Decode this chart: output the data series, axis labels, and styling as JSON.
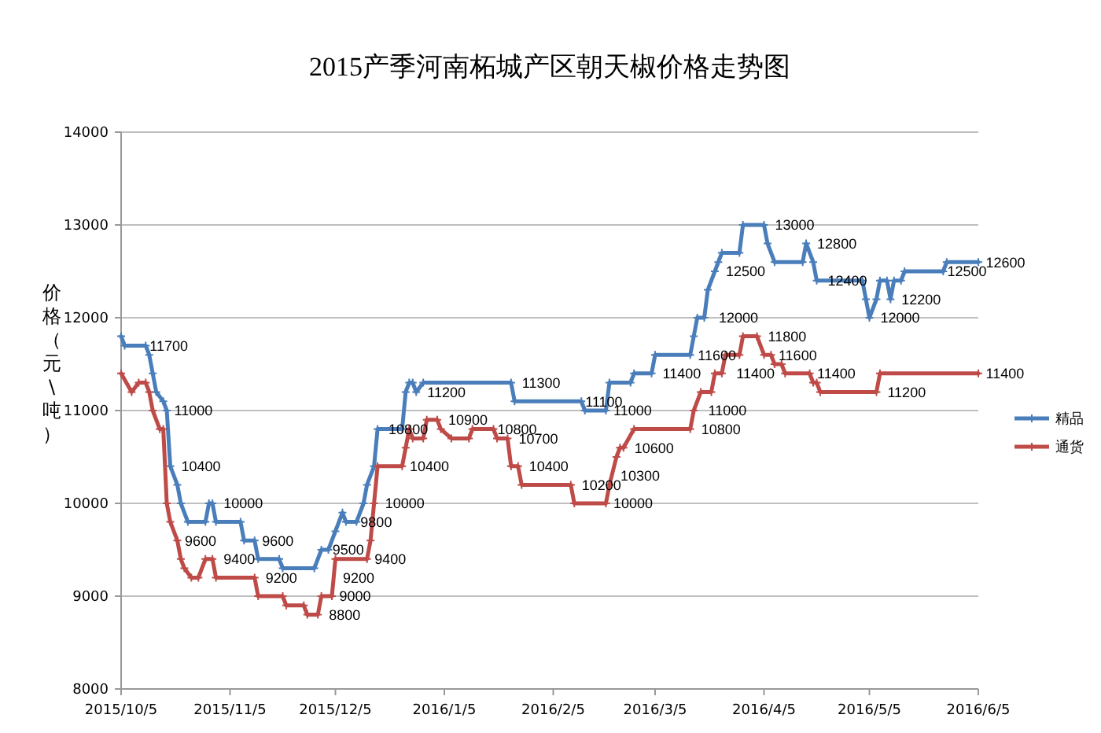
{
  "chart_data": {
    "type": "line",
    "title": "2015产季河南柘城产区朝天椒价格走势图",
    "ylabel": "价格（元\\吨）",
    "xlim": [
      "2015-10-05",
      "2016-06-05"
    ],
    "xticks": [
      {
        "value": "2015-10-05",
        "label": "2015/10/5"
      },
      {
        "value": "2015-11-05",
        "label": "2015/11/5"
      },
      {
        "value": "2015-12-05",
        "label": "2015/12/5"
      },
      {
        "value": "2016-01-05",
        "label": "2016/1/5"
      },
      {
        "value": "2016-02-05",
        "label": "2016/2/5"
      },
      {
        "value": "2016-03-05",
        "label": "2016/3/5"
      },
      {
        "value": "2016-04-05",
        "label": "2016/4/5"
      },
      {
        "value": "2016-05-05",
        "label": "2016/5/5"
      },
      {
        "value": "2016-06-05",
        "label": "2016/6/5"
      }
    ],
    "ylim": [
      8000,
      14000
    ],
    "yticks": [
      8000,
      9000,
      10000,
      11000,
      12000,
      13000,
      14000
    ],
    "grid": "y",
    "legend": "right",
    "marker": "cross",
    "line_style": "solid",
    "series": [
      {
        "name": "精品",
        "color": "#4a7ebb",
        "x": [
          "2015-10-05",
          "2015-10-06",
          "2015-10-12",
          "2015-10-13",
          "2015-10-14",
          "2015-10-15",
          "2015-10-17",
          "2015-10-18",
          "2015-10-19",
          "2015-10-21",
          "2015-10-22",
          "2015-10-24",
          "2015-10-29",
          "2015-10-30",
          "2015-10-31",
          "2015-11-01",
          "2015-11-08",
          "2015-11-09",
          "2015-11-12",
          "2015-11-13",
          "2015-11-19",
          "2015-11-20",
          "2015-11-29",
          "2015-12-01",
          "2015-12-03",
          "2015-12-05",
          "2015-12-07",
          "2015-12-08",
          "2015-12-11",
          "2015-12-13",
          "2015-12-14",
          "2015-12-16",
          "2015-12-17",
          "2015-12-24",
          "2015-12-25",
          "2015-12-26",
          "2015-12-27",
          "2015-12-28",
          "2015-12-30",
          "2016-01-24",
          "2016-01-25",
          "2016-02-13",
          "2016-02-14",
          "2016-02-20",
          "2016-02-21",
          "2016-02-27",
          "2016-02-28",
          "2016-03-04",
          "2016-03-05",
          "2016-03-15",
          "2016-03-16",
          "2016-03-17",
          "2016-03-19",
          "2016-03-20",
          "2016-03-22",
          "2016-03-23",
          "2016-03-24",
          "2016-03-29",
          "2016-03-30",
          "2016-04-05",
          "2016-04-06",
          "2016-04-08",
          "2016-04-16",
          "2016-04-17",
          "2016-04-19",
          "2016-04-20",
          "2016-05-03",
          "2016-05-04",
          "2016-05-05",
          "2016-05-07",
          "2016-05-08",
          "2016-05-10",
          "2016-05-11",
          "2016-05-12",
          "2016-05-14",
          "2016-05-15",
          "2016-05-26",
          "2016-05-27",
          "2016-06-05"
        ],
        "values": [
          11800,
          11700,
          11700,
          11600,
          11400,
          11200,
          11100,
          11000,
          10400,
          10200,
          10000,
          9800,
          9800,
          10000,
          10000,
          9800,
          9800,
          9600,
          9600,
          9400,
          9400,
          9300,
          9300,
          9500,
          9500,
          9700,
          9900,
          9800,
          9800,
          10000,
          10200,
          10400,
          10800,
          10800,
          11200,
          11300,
          11300,
          11200,
          11300,
          11300,
          11100,
          11100,
          11000,
          11000,
          11300,
          11300,
          11400,
          11400,
          11600,
          11600,
          11800,
          12000,
          12000,
          12300,
          12500,
          12600,
          12700,
          12700,
          13000,
          13000,
          12800,
          12600,
          12600,
          12800,
          12600,
          12400,
          12400,
          12200,
          12000,
          12200,
          12400,
          12400,
          12200,
          12400,
          12400,
          12500,
          12500,
          12600,
          12600
        ]
      },
      {
        "name": "通货",
        "color": "#be4b48",
        "x": [
          "2015-10-05",
          "2015-10-08",
          "2015-10-10",
          "2015-10-12",
          "2015-10-13",
          "2015-10-14",
          "2015-10-16",
          "2015-10-17",
          "2015-10-18",
          "2015-10-19",
          "2015-10-21",
          "2015-10-22",
          "2015-10-23",
          "2015-10-25",
          "2015-10-27",
          "2015-10-29",
          "2015-10-31",
          "2015-11-01",
          "2015-11-12",
          "2015-11-13",
          "2015-11-20",
          "2015-11-21",
          "2015-11-26",
          "2015-11-27",
          "2015-11-30",
          "2015-12-01",
          "2015-12-04",
          "2015-12-05",
          "2015-12-14",
          "2015-12-15",
          "2015-12-16",
          "2015-12-17",
          "2015-12-24",
          "2015-12-25",
          "2015-12-26",
          "2015-12-27",
          "2015-12-30",
          "2015-12-31",
          "2016-01-03",
          "2016-01-04",
          "2016-01-07",
          "2016-01-12",
          "2016-01-13",
          "2016-01-19",
          "2016-01-20",
          "2016-01-23",
          "2016-01-24",
          "2016-01-26",
          "2016-01-27",
          "2016-02-10",
          "2016-02-11",
          "2016-02-20",
          "2016-02-21",
          "2016-02-23",
          "2016-02-24",
          "2016-02-25",
          "2016-02-28",
          "2016-03-15",
          "2016-03-16",
          "2016-03-18",
          "2016-03-21",
          "2016-03-22",
          "2016-03-24",
          "2016-03-25",
          "2016-03-29",
          "2016-03-30",
          "2016-04-03",
          "2016-04-05",
          "2016-04-07",
          "2016-04-08",
          "2016-04-10",
          "2016-04-11",
          "2016-04-18",
          "2016-04-19",
          "2016-04-20",
          "2016-04-21",
          "2016-05-07",
          "2016-05-08",
          "2016-06-05"
        ],
        "values": [
          11400,
          11200,
          11300,
          11300,
          11200,
          11000,
          10800,
          10800,
          10000,
          9800,
          9600,
          9400,
          9300,
          9200,
          9200,
          9400,
          9400,
          9200,
          9200,
          9000,
          9000,
          8900,
          8900,
          8800,
          8800,
          9000,
          9000,
          9400,
          9400,
          9600,
          10000,
          10400,
          10400,
          10600,
          10800,
          10700,
          10700,
          10900,
          10900,
          10800,
          10700,
          10700,
          10800,
          10800,
          10700,
          10700,
          10400,
          10400,
          10200,
          10200,
          10000,
          10000,
          10200,
          10500,
          10600,
          10600,
          10800,
          10800,
          11000,
          11200,
          11200,
          11400,
          11400,
          11600,
          11600,
          11800,
          11800,
          11600,
          11600,
          11500,
          11500,
          11400,
          11400,
          11300,
          11300,
          11200,
          11200,
          11400,
          11400
        ]
      }
    ],
    "annotations": [
      {
        "text": "11700",
        "x": "2015-10-10",
        "y": 11700
      },
      {
        "text": "11000",
        "x": "2015-10-17",
        "y": 11000
      },
      {
        "text": "10400",
        "x": "2015-10-19",
        "y": 10400
      },
      {
        "text": "10000",
        "x": "2015-10-31",
        "y": 10000
      },
      {
        "text": "9600",
        "x": "2015-10-20",
        "y": 9600
      },
      {
        "text": "9600",
        "x": "2015-11-11",
        "y": 9600
      },
      {
        "text": "9400",
        "x": "2015-10-31",
        "y": 9400
      },
      {
        "text": "9200",
        "x": "2015-11-12",
        "y": 9200
      },
      {
        "text": "9200",
        "x": "2015-12-04",
        "y": 9200
      },
      {
        "text": "9400",
        "x": "2015-12-13",
        "y": 9400
      },
      {
        "text": "9000",
        "x": "2015-12-03",
        "y": 9000
      },
      {
        "text": "8800",
        "x": "2015-11-30",
        "y": 8800
      },
      {
        "text": "9500",
        "x": "2015-12-01",
        "y": 9500
      },
      {
        "text": "9800",
        "x": "2015-12-09",
        "y": 9800
      },
      {
        "text": "10000",
        "x": "2015-12-16",
        "y": 10000
      },
      {
        "text": "10800",
        "x": "2015-12-17",
        "y": 10800
      },
      {
        "text": "10400",
        "x": "2015-12-23",
        "y": 10400
      },
      {
        "text": "11200",
        "x": "2015-12-28",
        "y": 11200
      },
      {
        "text": "10900",
        "x": "2016-01-03",
        "y": 10900
      },
      {
        "text": "10800",
        "x": "2016-01-17",
        "y": 10800
      },
      {
        "text": "10700",
        "x": "2016-01-23",
        "y": 10700
      },
      {
        "text": "11300",
        "x": "2016-01-24",
        "y": 11300
      },
      {
        "text": "10400",
        "x": "2016-01-26",
        "y": 10400
      },
      {
        "text": "10200",
        "x": "2016-02-10",
        "y": 10200
      },
      {
        "text": "11100",
        "x": "2016-02-11",
        "y": 11100
      },
      {
        "text": "11000",
        "x": "2016-02-19",
        "y": 11000
      },
      {
        "text": "10000",
        "x": "2016-02-19",
        "y": 10000
      },
      {
        "text": "10300",
        "x": "2016-02-21",
        "y": 10300
      },
      {
        "text": "10600",
        "x": "2016-02-25",
        "y": 10600
      },
      {
        "text": "11400",
        "x": "2016-03-04",
        "y": 11400
      },
      {
        "text": "10800",
        "x": "2016-03-15",
        "y": 10800
      },
      {
        "text": "11000",
        "x": "2016-03-17",
        "y": 11000
      },
      {
        "text": "11600",
        "x": "2016-03-14",
        "y": 11600
      },
      {
        "text": "11400",
        "x": "2016-03-25",
        "y": 11400
      },
      {
        "text": "12000",
        "x": "2016-03-20",
        "y": 12000
      },
      {
        "text": "12500",
        "x": "2016-03-22",
        "y": 12500
      },
      {
        "text": "13000",
        "x": "2016-04-05",
        "y": 13000
      },
      {
        "text": "11800",
        "x": "2016-04-03",
        "y": 11800
      },
      {
        "text": "11600",
        "x": "2016-04-06",
        "y": 11600
      },
      {
        "text": "12800",
        "x": "2016-04-17",
        "y": 12800
      },
      {
        "text": "12400",
        "x": "2016-04-20",
        "y": 12400
      },
      {
        "text": "11400",
        "x": "2016-04-17",
        "y": 11400
      },
      {
        "text": "12000",
        "x": "2016-05-05",
        "y": 12000
      },
      {
        "text": "12200",
        "x": "2016-05-11",
        "y": 12200
      },
      {
        "text": "11200",
        "x": "2016-05-07",
        "y": 11200
      },
      {
        "text": "12500",
        "x": "2016-05-24",
        "y": 12500
      },
      {
        "text": "12600",
        "x": "2016-06-04",
        "y": 12600
      },
      {
        "text": "11400",
        "x": "2016-06-04",
        "y": 11400
      }
    ]
  }
}
